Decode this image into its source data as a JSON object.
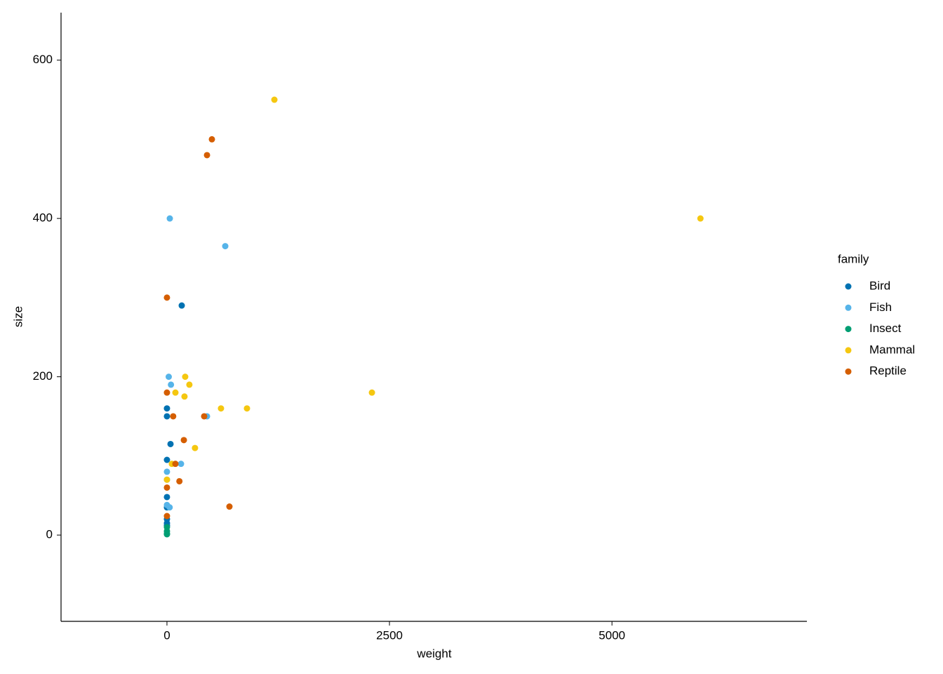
{
  "chart_data": {
    "type": "scatter",
    "x_label": "weight",
    "y_label": "size",
    "xlim": [
      -1190,
      7190
    ],
    "ylim": [
      -109,
      660
    ],
    "xticks": [
      0,
      2500,
      5000
    ],
    "yticks": [
      0,
      200,
      400,
      600
    ],
    "grid": false,
    "legend_title": "family",
    "legend_position": "right",
    "series": [
      {
        "name": "Bird",
        "color": "#0072b2",
        "x": [
          166,
          0,
          0,
          40,
          0,
          0,
          0,
          0,
          0,
          0
        ],
        "values": [
          290,
          160,
          150,
          115,
          95,
          48,
          35,
          20,
          15,
          12
        ]
      },
      {
        "name": "Fish",
        "color": "#56b4e9",
        "x": [
          32,
          655,
          20,
          45,
          450,
          158,
          0,
          30,
          0,
          0
        ],
        "values": [
          400,
          365,
          200,
          190,
          150,
          90,
          80,
          35,
          38,
          70
        ]
      },
      {
        "name": "Insect",
        "color": "#009e73",
        "x": [
          0,
          0,
          0,
          0
        ],
        "values": [
          10,
          5,
          2,
          1
        ]
      },
      {
        "name": "Mammal",
        "color": "#f5c710",
        "x": [
          1207,
          5994,
          2303,
          205,
          252,
          197,
          95,
          607,
          899,
          315,
          55,
          0
        ],
        "values": [
          550,
          400,
          180,
          200,
          190,
          175,
          180,
          160,
          160,
          110,
          90,
          70
        ]
      },
      {
        "name": "Reptile",
        "color": "#d55e00",
        "x": [
          505,
          450,
          0,
          0,
          70,
          418,
          190,
          95,
          140,
          702,
          0,
          0
        ],
        "values": [
          500,
          480,
          300,
          180,
          150,
          150,
          120,
          90,
          68,
          36,
          60,
          24
        ]
      }
    ]
  }
}
